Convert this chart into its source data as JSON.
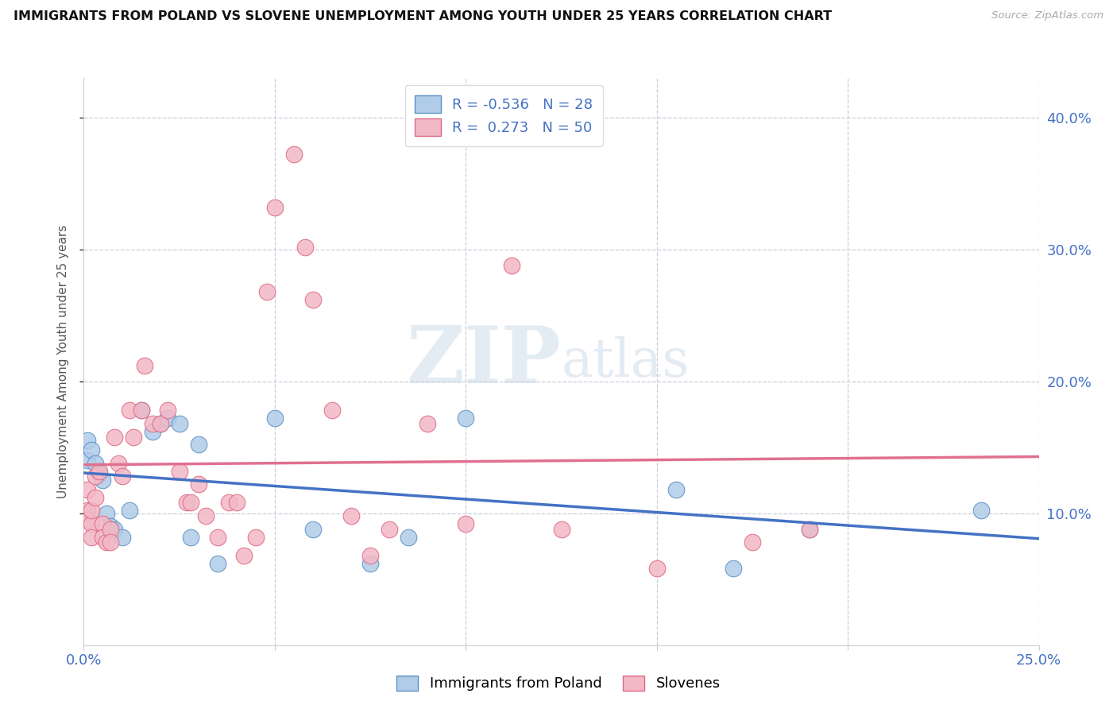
{
  "title": "IMMIGRANTS FROM POLAND VS SLOVENE UNEMPLOYMENT AMONG YOUTH UNDER 25 YEARS CORRELATION CHART",
  "source": "Source: ZipAtlas.com",
  "ylabel": "Unemployment Among Youth under 25 years",
  "legend_label1": "Immigrants from Poland",
  "legend_label2": "Slovenes",
  "r1": -0.536,
  "n1": 28,
  "r2": 0.273,
  "n2": 50,
  "color_blue_fill": "#b0cce8",
  "color_pink_fill": "#f2b8c6",
  "color_blue_edge": "#5a8fc5",
  "color_pink_edge": "#e06880",
  "color_blue_line": "#4472c4",
  "color_pink_line": "#e07090",
  "color_axis_label": "#4472c4",
  "background": "#ffffff",
  "grid_color": "#ccccdd",
  "xlim": [
    0.0,
    0.25
  ],
  "ylim": [
    0.0,
    0.43
  ],
  "yticks": [
    0.1,
    0.2,
    0.3,
    0.4
  ],
  "ytick_labels": [
    "10.0%",
    "20.0%",
    "30.0%",
    "40.0%"
  ],
  "blue_points_x": [
    0.001,
    0.001,
    0.002,
    0.003,
    0.004,
    0.005,
    0.006,
    0.007,
    0.008,
    0.01,
    0.012,
    0.015,
    0.018,
    0.02,
    0.022,
    0.025,
    0.028,
    0.03,
    0.035,
    0.05,
    0.06,
    0.075,
    0.085,
    0.1,
    0.155,
    0.17,
    0.19,
    0.235
  ],
  "blue_points_y": [
    0.155,
    0.14,
    0.148,
    0.138,
    0.13,
    0.125,
    0.1,
    0.09,
    0.088,
    0.082,
    0.102,
    0.178,
    0.162,
    0.168,
    0.172,
    0.168,
    0.082,
    0.152,
    0.062,
    0.172,
    0.088,
    0.062,
    0.082,
    0.172,
    0.118,
    0.058,
    0.088,
    0.102
  ],
  "pink_points_x": [
    0.001,
    0.001,
    0.001,
    0.002,
    0.002,
    0.002,
    0.003,
    0.003,
    0.004,
    0.005,
    0.005,
    0.006,
    0.007,
    0.007,
    0.008,
    0.009,
    0.01,
    0.012,
    0.013,
    0.015,
    0.016,
    0.018,
    0.02,
    0.022,
    0.025,
    0.027,
    0.028,
    0.03,
    0.032,
    0.035,
    0.038,
    0.04,
    0.042,
    0.045,
    0.048,
    0.05,
    0.055,
    0.058,
    0.06,
    0.065,
    0.07,
    0.075,
    0.08,
    0.09,
    0.1,
    0.112,
    0.125,
    0.15,
    0.175,
    0.19
  ],
  "pink_points_y": [
    0.118,
    0.102,
    0.095,
    0.092,
    0.102,
    0.082,
    0.128,
    0.112,
    0.132,
    0.092,
    0.082,
    0.078,
    0.088,
    0.078,
    0.158,
    0.138,
    0.128,
    0.178,
    0.158,
    0.178,
    0.212,
    0.168,
    0.168,
    0.178,
    0.132,
    0.108,
    0.108,
    0.122,
    0.098,
    0.082,
    0.108,
    0.108,
    0.068,
    0.082,
    0.268,
    0.332,
    0.372,
    0.302,
    0.262,
    0.178,
    0.098,
    0.068,
    0.088,
    0.168,
    0.092,
    0.288,
    0.088,
    0.058,
    0.078,
    0.088
  ]
}
